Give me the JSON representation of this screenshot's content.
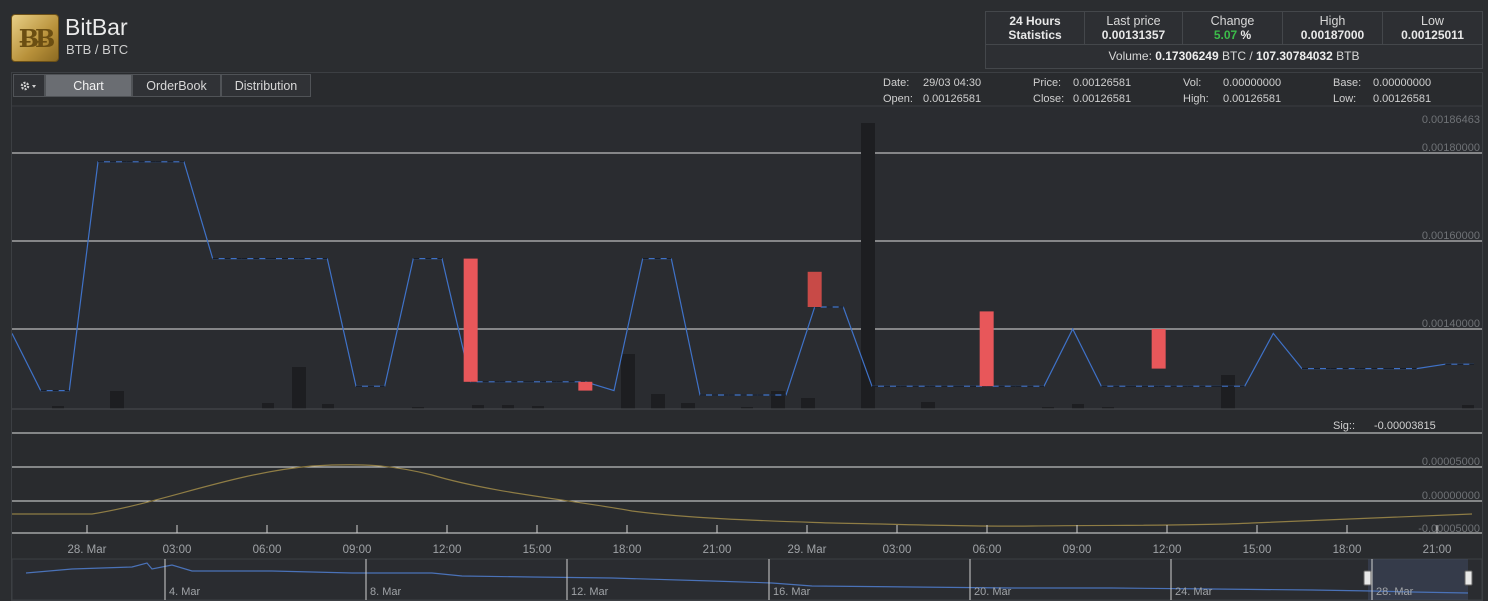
{
  "header": {
    "app_title": "BitBar",
    "pair": "BTB / BTC",
    "logo_text": "ɃɃ"
  },
  "stats": {
    "title_line1": "24 Hours",
    "title_line2": "Statistics",
    "last_price_label": "Last price",
    "last_price": "0.00131357",
    "change_label": "Change",
    "change_value": "5.07",
    "change_unit": "%",
    "high_label": "High",
    "high": "0.00187000",
    "low_label": "Low",
    "low": "0.00125011",
    "volume_label": "Volume:",
    "volume_btc": "0.17306249",
    "volume_btc_unit": "BTC /",
    "volume_btb": "107.30784032",
    "volume_btb_unit": "BTB"
  },
  "toolbar": {
    "settings_icon": "gear-icon",
    "tabs": [
      "Chart",
      "OrderBook",
      "Distribution"
    ],
    "active_tab": "Chart"
  },
  "info": {
    "date_label": "Date:",
    "date": "29/03 04:30",
    "open_label": "Open:",
    "open": "0.00126581",
    "price_label": "Price:",
    "price": "0.00126581",
    "close_label": "Close:",
    "close": "0.00126581",
    "vol_label": "Vol:",
    "vol": "0.00000000",
    "high_label": "High:",
    "high": "0.00126581",
    "base_label": "Base:",
    "base": "0.00000000",
    "low_label": "Low:",
    "low": "0.00126581"
  },
  "main_axis": {
    "labels": [
      "0.00186463",
      "0.00180000",
      "0.00160000",
      "0.00140000"
    ]
  },
  "indicator": {
    "sig_label": "Sig::",
    "sig_value": "-0.00003815",
    "labels": [
      "0.00005000",
      "0.00000000",
      "-0.00005000"
    ]
  },
  "time_axis": {
    "labels": [
      "28. Mar",
      "03:00",
      "06:00",
      "09:00",
      "12:00",
      "15:00",
      "18:00",
      "21:00",
      "29. Mar",
      "03:00",
      "06:00",
      "09:00",
      "12:00",
      "15:00",
      "18:00",
      "21:00"
    ]
  },
  "navigator": {
    "labels": [
      "4. Mar",
      "8. Mar",
      "12. Mar",
      "16. Mar",
      "20. Mar",
      "24. Mar",
      "28. Mar"
    ]
  },
  "chart_data": {
    "type": "line",
    "title": "",
    "ylim": [
      0.0012,
      0.00186463
    ],
    "grid": true,
    "series": [
      {
        "values": [
          0.00139,
          0.00126,
          0.00126,
          0.00178,
          0.00178,
          0.00178,
          0.00178,
          0.00156,
          0.00156,
          0.00156,
          0.00156,
          0.00156,
          0.00127,
          0.00127,
          0.00156,
          0.00156,
          0.00128,
          0.00128,
          0.00128,
          0.00128,
          0.00128,
          0.00126,
          0.00156,
          0.00156,
          0.00125,
          0.00125,
          0.00125,
          0.00125,
          0.00145,
          0.00145,
          0.00127,
          0.00127,
          0.00127,
          0.00127,
          0.00127,
          0.00127,
          0.00127,
          0.0014,
          0.00127,
          0.00127,
          0.00127,
          0.00127,
          0.00127,
          0.00127,
          0.00139,
          0.00131,
          0.00131,
          0.00131,
          0.00131,
          0.00131,
          0.00132,
          0.00132
        ]
      }
    ],
    "candles": [
      {
        "index": 16,
        "open": 0.00156,
        "close": 0.00128
      },
      {
        "index": 20,
        "open": 0.00128,
        "close": 0.00126
      },
      {
        "index": 28,
        "open": 0.00153,
        "close": 0.00145
      },
      {
        "index": 34,
        "open": 0.00144,
        "close": 0.00127
      },
      {
        "index": 40,
        "open": 0.0014,
        "close": 0.00131
      }
    ]
  }
}
